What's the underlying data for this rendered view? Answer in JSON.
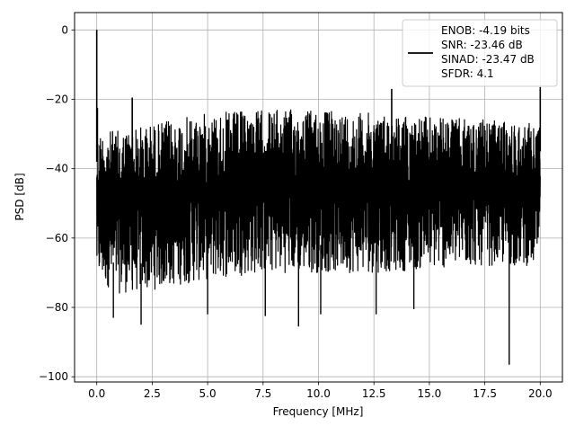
{
  "chart_data": {
    "type": "line",
    "title": "",
    "xlabel": "Frequency [MHz]",
    "ylabel": "PSD [dB]",
    "xlim": [
      -1.0,
      21.0
    ],
    "ylim": [
      -101.5,
      5.0
    ],
    "xticks": [
      0.0,
      2.5,
      5.0,
      7.5,
      10.0,
      12.5,
      15.0,
      17.5,
      20.0
    ],
    "xtick_labels": [
      "0.0",
      "2.5",
      "5.0",
      "7.5",
      "10.0",
      "12.5",
      "15.0",
      "17.5",
      "20.0"
    ],
    "yticks": [
      0,
      -20,
      -40,
      -60,
      -80,
      -100
    ],
    "ytick_labels": [
      "0",
      "−20",
      "−40",
      "−60",
      "−80",
      "−100"
    ],
    "grid": true,
    "legend_position": "top-right",
    "series": [
      {
        "color": "#000000",
        "description": "dense noise PSD spanning roughly -23 to -85 dB",
        "envelope": {
          "x": [
            0.0,
            0.2,
            1.0,
            2.5,
            5.0,
            7.5,
            10.0,
            12.5,
            15.0,
            17.5,
            20.0
          ],
          "upper": [
            -30,
            -29,
            -29,
            -27,
            -24,
            -23,
            -23,
            -24,
            -25,
            -26,
            -27
          ],
          "lower": [
            -72,
            -73,
            -76,
            -75,
            -72,
            -70,
            -70,
            -70,
            -69,
            -68,
            -68
          ]
        },
        "spurs": [
          {
            "x": 0.0,
            "y": 0.0
          },
          {
            "x": 0.03,
            "y": -22.5
          },
          {
            "x": 1.6,
            "y": -19.5
          },
          {
            "x": 13.3,
            "y": -17.0
          },
          {
            "x": 20.0,
            "y": -16.5
          }
        ],
        "dips": [
          {
            "x": 0.75,
            "y": -83.0
          },
          {
            "x": 2.0,
            "y": -85.0
          },
          {
            "x": 5.0,
            "y": -82.0
          },
          {
            "x": 7.6,
            "y": -82.5
          },
          {
            "x": 9.1,
            "y": -85.5
          },
          {
            "x": 10.1,
            "y": -82.0
          },
          {
            "x": 12.6,
            "y": -82.0
          },
          {
            "x": 14.3,
            "y": -80.5
          },
          {
            "x": 18.6,
            "y": -96.5
          }
        ]
      }
    ],
    "legend_lines": [
      "ENOB: -4.19 bits",
      "SNR: -23.46 dB",
      "SINAD: -23.47 dB",
      "SFDR: 4.1"
    ]
  }
}
